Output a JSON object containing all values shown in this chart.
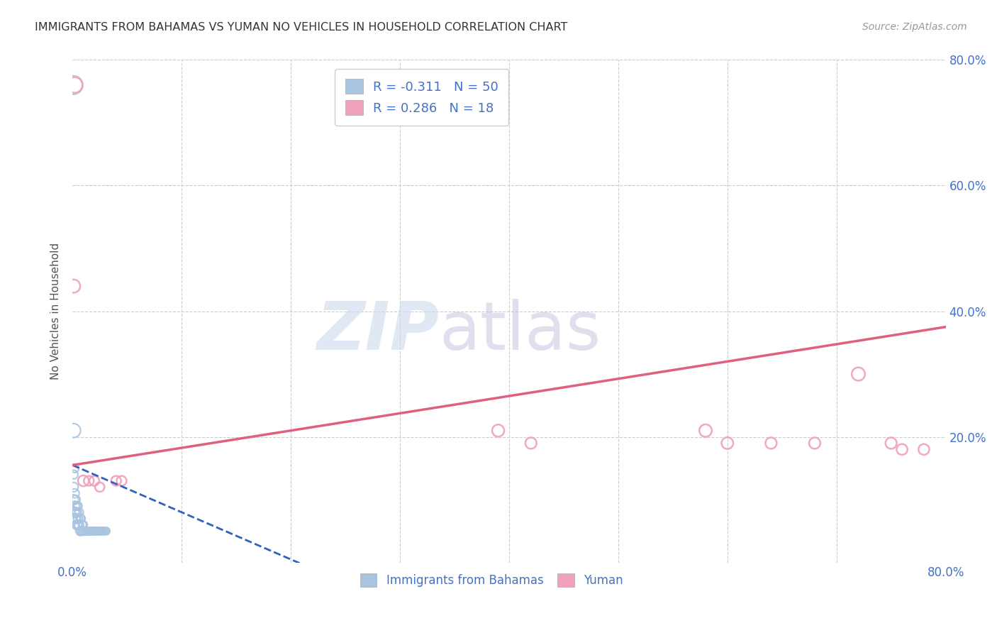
{
  "title": "IMMIGRANTS FROM BAHAMAS VS YUMAN NO VEHICLES IN HOUSEHOLD CORRELATION CHART",
  "source": "Source: ZipAtlas.com",
  "ylabel": "No Vehicles in Household",
  "xlim": [
    0.0,
    0.8
  ],
  "ylim": [
    0.0,
    0.8
  ],
  "blue_color": "#a8c4e0",
  "pink_color": "#f0a0b8",
  "blue_line_color": "#3060c0",
  "pink_line_color": "#e06080",
  "grid_color": "#cccccc",
  "legend_r1_val": "-0.311",
  "legend_n1_val": "50",
  "legend_r2_val": "0.286",
  "legend_n2_val": "18",
  "blue_scatter_x": [
    0.001,
    0.001,
    0.001,
    0.001,
    0.002,
    0.002,
    0.002,
    0.002,
    0.003,
    0.003,
    0.003,
    0.004,
    0.004,
    0.004,
    0.005,
    0.005,
    0.005,
    0.006,
    0.006,
    0.007,
    0.007,
    0.008,
    0.008,
    0.009,
    0.009,
    0.01,
    0.01,
    0.011,
    0.012,
    0.013,
    0.014,
    0.015,
    0.016,
    0.017,
    0.018,
    0.019,
    0.02,
    0.021,
    0.022,
    0.023,
    0.024,
    0.025,
    0.026,
    0.027,
    0.028,
    0.029,
    0.03,
    0.031,
    0.001,
    0.001
  ],
  "blue_scatter_y": [
    0.08,
    0.1,
    0.12,
    0.14,
    0.07,
    0.09,
    0.11,
    0.15,
    0.07,
    0.08,
    0.1,
    0.06,
    0.08,
    0.09,
    0.06,
    0.07,
    0.09,
    0.06,
    0.08,
    0.05,
    0.07,
    0.05,
    0.07,
    0.05,
    0.06,
    0.05,
    0.06,
    0.05,
    0.05,
    0.05,
    0.05,
    0.05,
    0.05,
    0.05,
    0.05,
    0.05,
    0.05,
    0.05,
    0.05,
    0.05,
    0.05,
    0.05,
    0.05,
    0.05,
    0.05,
    0.05,
    0.05,
    0.05,
    0.21,
    0.76
  ],
  "blue_scatter_size": [
    120,
    100,
    90,
    80,
    110,
    95,
    85,
    75,
    100,
    90,
    80,
    95,
    85,
    75,
    90,
    80,
    70,
    85,
    75,
    80,
    70,
    75,
    65,
    70,
    65,
    70,
    65,
    65,
    65,
    60,
    60,
    60,
    60,
    60,
    60,
    60,
    55,
    55,
    55,
    55,
    55,
    55,
    55,
    55,
    55,
    55,
    55,
    55,
    200,
    350
  ],
  "pink_scatter_x": [
    0.001,
    0.002,
    0.01,
    0.015,
    0.02,
    0.025,
    0.04,
    0.045,
    0.39,
    0.42,
    0.58,
    0.6,
    0.64,
    0.68,
    0.72,
    0.75,
    0.76,
    0.78
  ],
  "pink_scatter_y": [
    0.44,
    0.76,
    0.13,
    0.13,
    0.13,
    0.12,
    0.13,
    0.13,
    0.21,
    0.19,
    0.21,
    0.19,
    0.19,
    0.19,
    0.3,
    0.19,
    0.18,
    0.18
  ],
  "pink_scatter_size": [
    180,
    250,
    120,
    100,
    100,
    90,
    100,
    100,
    150,
    130,
    160,
    140,
    130,
    130,
    180,
    130,
    120,
    120
  ],
  "blue_line_x_start": 0.0,
  "blue_line_x_end": 0.22,
  "blue_line_y_start": 0.155,
  "blue_line_y_end": -0.01,
  "pink_line_x_start": 0.0,
  "pink_line_x_end": 0.8,
  "pink_line_y_start": 0.155,
  "pink_line_y_end": 0.375
}
